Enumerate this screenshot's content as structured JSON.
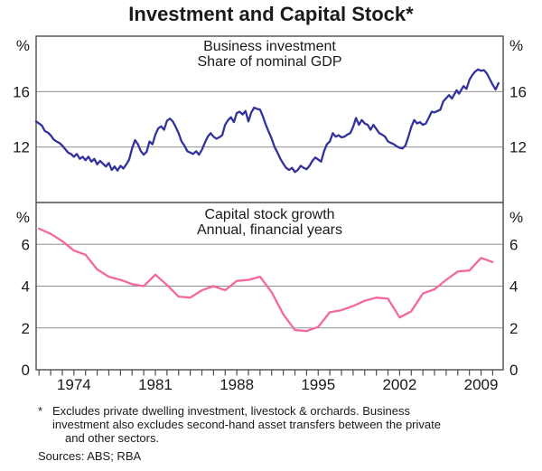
{
  "title": "Investment and Capital Stock*",
  "x_labels": [
    "1974",
    "1981",
    "1988",
    "1995",
    "2002",
    "2009"
  ],
  "footnote": {
    "marker": "*",
    "lines": [
      "Excludes private dwelling investment, livestock & orchards. Business",
      "investment also excludes second-hand asset transfers between the private",
      "and other sectors."
    ]
  },
  "sources": "Sources: ABS; RBA",
  "colors": {
    "investment_line": "#32329e",
    "capital_stock_line": "#f4679f",
    "gridline": "#8f8f8f",
    "frame": "#4d4d4d",
    "text": "#1a1a1a"
  },
  "chart_data": [
    {
      "type": "line",
      "title": "Business investment",
      "subtitle": "Share of nominal GDP",
      "unit": "%",
      "frequency": "quarterly",
      "ylim": [
        8,
        20
      ],
      "yticks": [
        16,
        12
      ],
      "x_range": [
        1970.75,
        2010.9
      ],
      "legend": "none",
      "grid": "horizontal",
      "points": [
        [
          1970.75,
          13.85
        ],
        [
          1971.0,
          13.7
        ],
        [
          1971.25,
          13.55
        ],
        [
          1971.5,
          13.15
        ],
        [
          1971.75,
          13.05
        ],
        [
          1972.0,
          12.85
        ],
        [
          1972.25,
          12.55
        ],
        [
          1972.5,
          12.4
        ],
        [
          1972.75,
          12.3
        ],
        [
          1973.0,
          12.1
        ],
        [
          1973.25,
          11.85
        ],
        [
          1973.5,
          11.6
        ],
        [
          1973.75,
          11.5
        ],
        [
          1974.0,
          11.3
        ],
        [
          1974.25,
          11.5
        ],
        [
          1974.5,
          11.15
        ],
        [
          1974.75,
          11.3
        ],
        [
          1975.0,
          11.05
        ],
        [
          1975.25,
          11.3
        ],
        [
          1975.5,
          10.95
        ],
        [
          1975.75,
          11.15
        ],
        [
          1976.0,
          10.75
        ],
        [
          1976.25,
          11.0
        ],
        [
          1976.5,
          10.8
        ],
        [
          1976.75,
          10.6
        ],
        [
          1977.0,
          10.85
        ],
        [
          1977.25,
          10.35
        ],
        [
          1977.5,
          10.6
        ],
        [
          1977.75,
          10.3
        ],
        [
          1978.0,
          10.65
        ],
        [
          1978.25,
          10.45
        ],
        [
          1978.5,
          10.75
        ],
        [
          1978.75,
          11.1
        ],
        [
          1979.0,
          11.9
        ],
        [
          1979.25,
          12.5
        ],
        [
          1979.5,
          12.2
        ],
        [
          1979.75,
          11.7
        ],
        [
          1980.0,
          11.45
        ],
        [
          1980.25,
          11.65
        ],
        [
          1980.5,
          12.4
        ],
        [
          1980.75,
          12.2
        ],
        [
          1981.0,
          12.9
        ],
        [
          1981.25,
          13.35
        ],
        [
          1981.5,
          13.5
        ],
        [
          1981.75,
          13.25
        ],
        [
          1982.0,
          13.9
        ],
        [
          1982.25,
          14.05
        ],
        [
          1982.5,
          13.85
        ],
        [
          1982.75,
          13.45
        ],
        [
          1983.0,
          13.0
        ],
        [
          1983.25,
          12.4
        ],
        [
          1983.5,
          12.1
        ],
        [
          1983.75,
          11.7
        ],
        [
          1984.0,
          11.6
        ],
        [
          1984.25,
          11.5
        ],
        [
          1984.5,
          11.7
        ],
        [
          1984.75,
          11.45
        ],
        [
          1985.0,
          11.8
        ],
        [
          1985.25,
          12.3
        ],
        [
          1985.5,
          12.75
        ],
        [
          1985.75,
          13.0
        ],
        [
          1986.0,
          12.75
        ],
        [
          1986.25,
          12.6
        ],
        [
          1986.5,
          12.7
        ],
        [
          1986.75,
          12.85
        ],
        [
          1987.0,
          13.6
        ],
        [
          1987.25,
          13.95
        ],
        [
          1987.5,
          14.15
        ],
        [
          1987.75,
          13.8
        ],
        [
          1988.0,
          14.45
        ],
        [
          1988.25,
          14.55
        ],
        [
          1988.5,
          14.35
        ],
        [
          1988.75,
          14.6
        ],
        [
          1989.0,
          13.85
        ],
        [
          1989.25,
          14.5
        ],
        [
          1989.5,
          14.85
        ],
        [
          1989.75,
          14.75
        ],
        [
          1990.0,
          14.7
        ],
        [
          1990.25,
          14.2
        ],
        [
          1990.5,
          13.6
        ],
        [
          1990.75,
          13.1
        ],
        [
          1991.0,
          12.6
        ],
        [
          1991.25,
          12.0
        ],
        [
          1991.5,
          11.6
        ],
        [
          1991.75,
          11.15
        ],
        [
          1992.0,
          10.8
        ],
        [
          1992.25,
          10.5
        ],
        [
          1992.5,
          10.35
        ],
        [
          1992.75,
          10.5
        ],
        [
          1993.0,
          10.2
        ],
        [
          1993.25,
          10.35
        ],
        [
          1993.5,
          10.65
        ],
        [
          1993.75,
          10.5
        ],
        [
          1994.0,
          10.4
        ],
        [
          1994.25,
          10.65
        ],
        [
          1994.5,
          11.0
        ],
        [
          1994.75,
          11.25
        ],
        [
          1995.0,
          11.1
        ],
        [
          1995.25,
          10.95
        ],
        [
          1995.5,
          11.7
        ],
        [
          1995.75,
          12.2
        ],
        [
          1996.0,
          12.4
        ],
        [
          1996.25,
          13.0
        ],
        [
          1996.5,
          12.75
        ],
        [
          1996.75,
          12.85
        ],
        [
          1997.0,
          12.7
        ],
        [
          1997.25,
          12.75
        ],
        [
          1997.5,
          12.9
        ],
        [
          1997.75,
          13.0
        ],
        [
          1998.0,
          13.45
        ],
        [
          1998.25,
          14.1
        ],
        [
          1998.5,
          13.6
        ],
        [
          1998.75,
          13.95
        ],
        [
          1999.0,
          13.7
        ],
        [
          1999.25,
          13.6
        ],
        [
          1999.5,
          13.25
        ],
        [
          1999.75,
          13.6
        ],
        [
          2000.0,
          13.3
        ],
        [
          2000.25,
          13.0
        ],
        [
          2000.5,
          12.9
        ],
        [
          2000.75,
          12.75
        ],
        [
          2001.0,
          12.4
        ],
        [
          2001.25,
          12.3
        ],
        [
          2001.5,
          12.2
        ],
        [
          2001.75,
          12.05
        ],
        [
          2002.0,
          11.95
        ],
        [
          2002.25,
          11.9
        ],
        [
          2002.5,
          12.1
        ],
        [
          2002.75,
          12.75
        ],
        [
          2003.0,
          13.45
        ],
        [
          2003.25,
          13.95
        ],
        [
          2003.5,
          13.7
        ],
        [
          2003.75,
          13.8
        ],
        [
          2004.0,
          13.6
        ],
        [
          2004.25,
          13.7
        ],
        [
          2004.5,
          14.1
        ],
        [
          2004.75,
          14.55
        ],
        [
          2005.0,
          14.5
        ],
        [
          2005.25,
          14.6
        ],
        [
          2005.5,
          14.7
        ],
        [
          2005.75,
          15.3
        ],
        [
          2006.25,
          15.75
        ],
        [
          2006.5,
          15.5
        ],
        [
          2006.9,
          16.1
        ],
        [
          2007.1,
          15.85
        ],
        [
          2007.5,
          16.4
        ],
        [
          2007.75,
          16.2
        ],
        [
          2008.0,
          16.85
        ],
        [
          2008.25,
          17.2
        ],
        [
          2008.5,
          17.45
        ],
        [
          2008.75,
          17.6
        ],
        [
          2009.0,
          17.5
        ],
        [
          2009.25,
          17.55
        ],
        [
          2009.5,
          17.3
        ],
        [
          2009.75,
          16.9
        ],
        [
          2010.0,
          16.5
        ],
        [
          2010.25,
          16.15
        ],
        [
          2010.5,
          16.6
        ]
      ]
    },
    {
      "type": "line",
      "title": "Capital stock growth",
      "subtitle": "Annual, financial years",
      "unit": "%",
      "frequency": "annual (financial years)",
      "ylim": [
        0,
        8
      ],
      "yticks": [
        6,
        4,
        2,
        0
      ],
      "x_range": [
        1970.75,
        2010.9
      ],
      "legend": "none",
      "grid": "horizontal",
      "points": [
        [
          1971,
          6.75
        ],
        [
          1972,
          6.5
        ],
        [
          1973,
          6.15
        ],
        [
          1974,
          5.7
        ],
        [
          1975,
          5.5
        ],
        [
          1976,
          4.8
        ],
        [
          1977,
          4.45
        ],
        [
          1978,
          4.3
        ],
        [
          1979,
          4.1
        ],
        [
          1980,
          4.0
        ],
        [
          1981,
          4.55
        ],
        [
          1982,
          4.05
        ],
        [
          1983,
          3.5
        ],
        [
          1984,
          3.45
        ],
        [
          1985,
          3.8
        ],
        [
          1986,
          4.0
        ],
        [
          1987,
          3.8
        ],
        [
          1988,
          4.25
        ],
        [
          1989,
          4.3
        ],
        [
          1990,
          4.45
        ],
        [
          1991,
          3.7
        ],
        [
          1992,
          2.65
        ],
        [
          1993,
          1.9
        ],
        [
          1994,
          1.85
        ],
        [
          1995,
          2.05
        ],
        [
          1996,
          2.75
        ],
        [
          1997,
          2.85
        ],
        [
          1998,
          3.05
        ],
        [
          1999,
          3.3
        ],
        [
          2000,
          3.45
        ],
        [
          2001,
          3.4
        ],
        [
          2002,
          2.5
        ],
        [
          2003,
          2.8
        ],
        [
          2004,
          3.65
        ],
        [
          2005,
          3.85
        ],
        [
          2006,
          4.3
        ],
        [
          2007,
          4.7
        ],
        [
          2008,
          4.75
        ],
        [
          2009,
          5.35
        ],
        [
          2010,
          5.15
        ]
      ]
    }
  ]
}
